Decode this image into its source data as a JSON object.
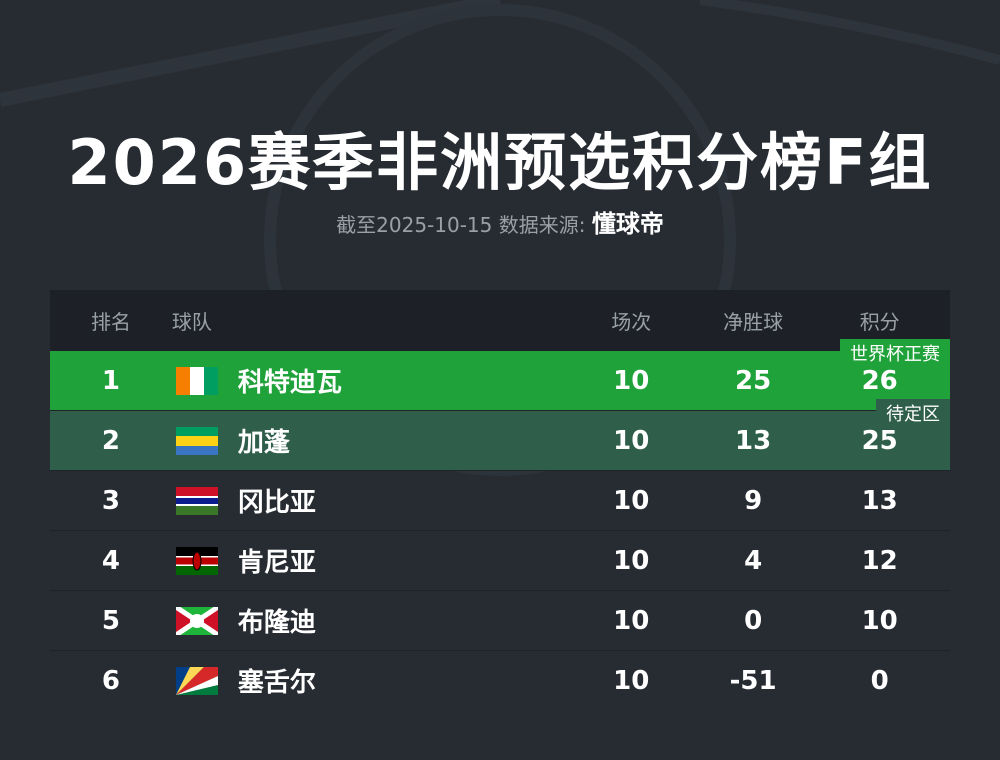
{
  "title": "2026赛季非洲预选积分榜F组",
  "subtitle": "截至2025-10-15 数据来源:",
  "source": "懂球帝",
  "colors": {
    "background": "#272c33",
    "header": "#1d2127",
    "qualified": "#1fa23a",
    "playoff": "#2f5e4b"
  },
  "headers": {
    "rank": "排名",
    "team": "球队",
    "played": "场次",
    "gd": "净胜球",
    "points": "积分"
  },
  "rows": [
    {
      "rank": "1",
      "team": "科特迪瓦",
      "flag": "ivory-coast",
      "played": "10",
      "gd": "25",
      "points": "26",
      "badge": "世界杯正赛"
    },
    {
      "rank": "2",
      "team": "加蓬",
      "flag": "gabon",
      "played": "10",
      "gd": "13",
      "points": "25",
      "badge": "待定区"
    },
    {
      "rank": "3",
      "team": "冈比亚",
      "flag": "gambia",
      "played": "10",
      "gd": "9",
      "points": "13"
    },
    {
      "rank": "4",
      "team": "肯尼亚",
      "flag": "kenya",
      "played": "10",
      "gd": "4",
      "points": "12"
    },
    {
      "rank": "5",
      "team": "布隆迪",
      "flag": "burundi",
      "played": "10",
      "gd": "0",
      "points": "10"
    },
    {
      "rank": "6",
      "team": "塞舌尔",
      "flag": "seychelles",
      "played": "10",
      "gd": "-51",
      "points": "0"
    }
  ]
}
